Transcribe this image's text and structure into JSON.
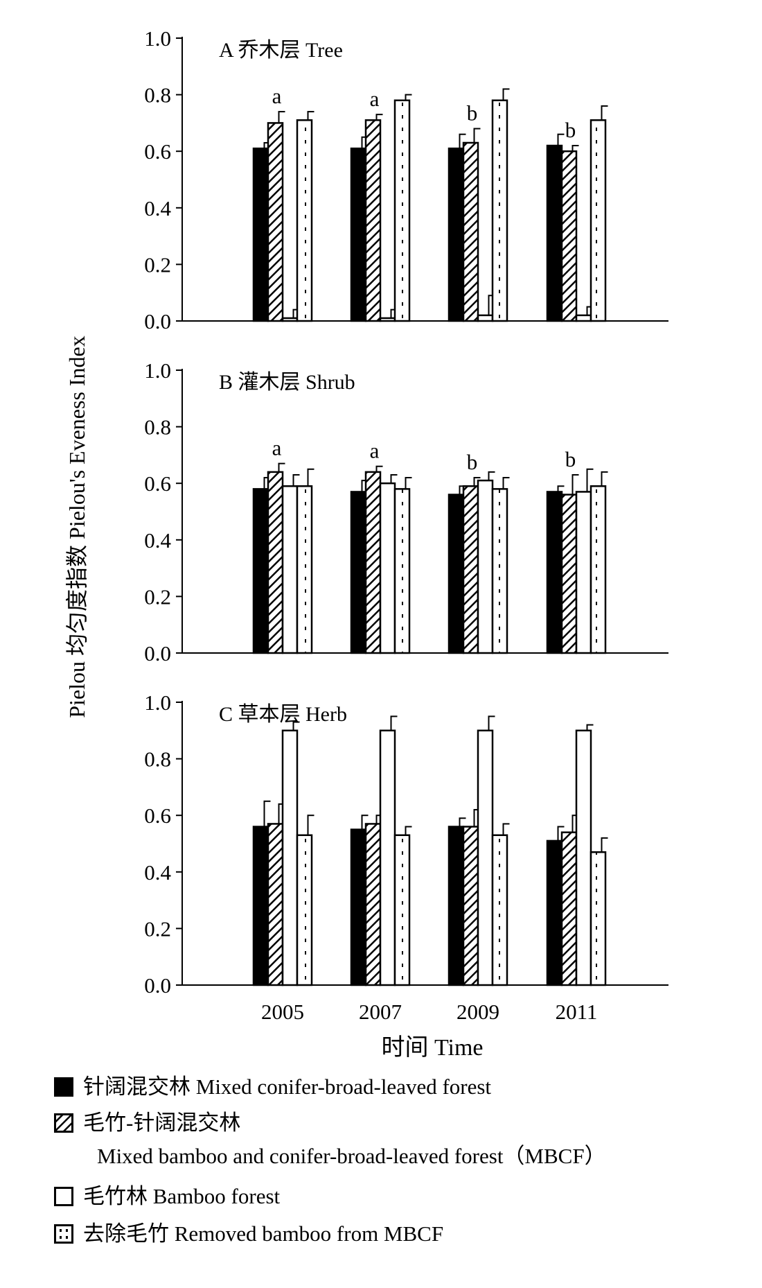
{
  "chart_data": {
    "type": "bar",
    "ylabel": "Pielou 均匀度指数 Pielou's Eveness Index",
    "xlabel": "时间 Time",
    "categories": [
      "2005",
      "2007",
      "2009",
      "2011"
    ],
    "yticks": [
      "0.0",
      "0.2",
      "0.4",
      "0.6",
      "0.8",
      "1.0"
    ],
    "ylim": [
      0,
      1.0
    ],
    "series_names": [
      "针阔混交林",
      "毛竹-针阔混交林",
      "毛竹林",
      "去除毛竹"
    ],
    "panels": [
      {
        "title": "A 乔木层 Tree",
        "series": [
          {
            "values": [
              0.61,
              0.61,
              0.61,
              0.62
            ],
            "errors": [
              0.02,
              0.04,
              0.05,
              0.04
            ]
          },
          {
            "values": [
              0.7,
              0.71,
              0.63,
              0.6
            ],
            "errors": [
              0.04,
              0.02,
              0.05,
              0.02
            ],
            "labels": [
              "a",
              "a",
              "b",
              "b"
            ]
          },
          {
            "values": [
              0.01,
              0.01,
              0.02,
              0.02
            ],
            "errors": [
              0.03,
              0.03,
              0.07,
              0.03
            ]
          },
          {
            "values": [
              0.71,
              0.78,
              0.78,
              0.71
            ],
            "errors": [
              0.03,
              0.02,
              0.04,
              0.05
            ]
          }
        ]
      },
      {
        "title": "B 灌木层 Shrub",
        "series": [
          {
            "values": [
              0.58,
              0.57,
              0.56,
              0.57
            ],
            "errors": [
              0.04,
              0.04,
              0.03,
              0.02
            ]
          },
          {
            "values": [
              0.64,
              0.64,
              0.59,
              0.56
            ],
            "errors": [
              0.03,
              0.02,
              0.03,
              0.07
            ],
            "labels": [
              "a",
              "a",
              "b",
              "b"
            ]
          },
          {
            "values": [
              0.59,
              0.6,
              0.61,
              0.57
            ],
            "errors": [
              0.04,
              0.03,
              0.03,
              0.08
            ]
          },
          {
            "values": [
              0.59,
              0.58,
              0.58,
              0.59
            ],
            "errors": [
              0.06,
              0.04,
              0.04,
              0.05
            ]
          }
        ]
      },
      {
        "title": "C 草本层 Herb",
        "series": [
          {
            "values": [
              0.56,
              0.55,
              0.56,
              0.51
            ],
            "errors": [
              0.09,
              0.05,
              0.03,
              0.05
            ]
          },
          {
            "values": [
              0.57,
              0.57,
              0.56,
              0.54
            ],
            "errors": [
              0.07,
              0.03,
              0.06,
              0.06
            ]
          },
          {
            "values": [
              0.9,
              0.9,
              0.9,
              0.9
            ],
            "errors": [
              0.03,
              0.05,
              0.05,
              0.02
            ]
          },
          {
            "values": [
              0.53,
              0.53,
              0.53,
              0.47
            ],
            "errors": [
              0.07,
              0.03,
              0.04,
              0.05
            ]
          }
        ]
      }
    ]
  },
  "legend": {
    "items": [
      {
        "label": "针阔混交林 Mixed conifer-broad-leaved forest",
        "pattern": "solid"
      },
      {
        "label": "毛竹-针阔混交林",
        "sub": "Mixed bamboo and conifer-broad-leaved forest（MBCF）",
        "pattern": "hatch"
      },
      {
        "label": "毛竹林 Bamboo  forest",
        "pattern": "empty"
      },
      {
        "label": "去除毛竹 Removed bamboo from MBCF",
        "pattern": "dots"
      }
    ]
  }
}
